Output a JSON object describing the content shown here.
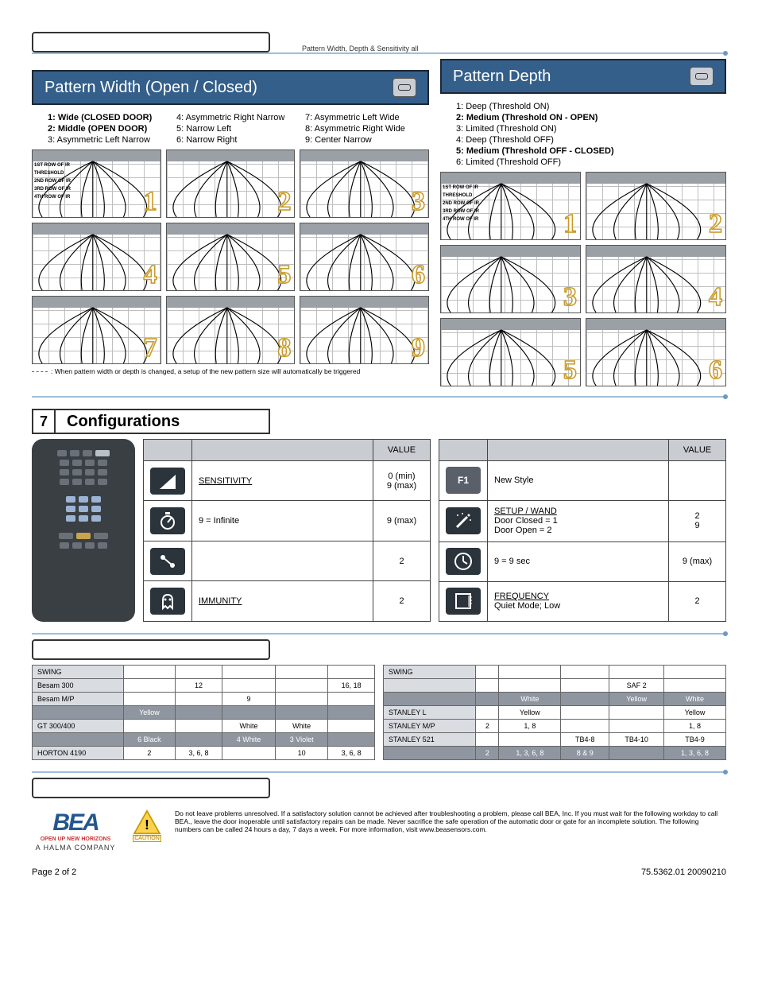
{
  "header_note": "Pattern Width, Depth & Sensitivity all",
  "pattern_width": {
    "title": "Pattern Width (Open / Closed)",
    "cols": [
      [
        "1:  Wide (CLOSED DOOR)",
        "2:  Middle (OPEN DOOR)",
        "3:  Asymmetric Left Narrow"
      ],
      [
        "4:  Asymmetric Right Narrow",
        "5:  Narrow Left",
        "6:  Narrow Right"
      ],
      [
        "7:  Asymmetric Left Wide",
        "8:  Asymmetric Right Wide",
        "9:  Center Narrow"
      ]
    ],
    "bold_idx": [
      0,
      1
    ],
    "row_labels": [
      "1ST ROW OF IR",
      "THRESHOLD",
      "2ND ROW OF IR",
      "3RD ROW OF IR",
      "4TH ROW OF IR"
    ],
    "footnote": ": When pattern width or depth is changed, a setup of the new pattern size will automatically be triggered"
  },
  "pattern_depth": {
    "title": "Pattern Depth",
    "items": [
      "1:  Deep (Threshold ON)",
      "2:  Medium (Threshold ON - OPEN)",
      "3:  Limited (Threshold ON)",
      "4:  Deep (Threshold OFF)",
      "5:  Medium (Threshold OFF - CLOSED)",
      "6:  Limited (Threshold OFF)"
    ],
    "bold_idx": [
      1,
      4
    ]
  },
  "config": {
    "num": "7",
    "title": "Configurations",
    "value_hdr": "VALUE",
    "left": [
      {
        "label": "SENSITIVITY",
        "under": true,
        "val": "0 (min)\n9 (max)",
        "icon": "tri"
      },
      {
        "label": "9 = Infinite",
        "under": false,
        "val": "9 (max)",
        "icon": "dial"
      },
      {
        "label": "",
        "under": false,
        "val": "2",
        "icon": "toggle"
      },
      {
        "label": "IMMUNITY",
        "under": true,
        "val": "2",
        "icon": "ghost"
      }
    ],
    "right": [
      {
        "label": "New Style",
        "under": false,
        "val": "",
        "icon": "F1",
        "text": "F1"
      },
      {
        "label": "SETUP / WAND\nDoor Closed = 1\nDoor Open = 2",
        "under": true,
        "val": "2\n9",
        "icon": "wand"
      },
      {
        "label": "9 = 9 sec",
        "under": false,
        "val": "9 (max)",
        "icon": "clock"
      },
      {
        "label": "FREQUENCY\n\nQuiet Mode; Low",
        "under": true,
        "val": "2",
        "icon": "door"
      }
    ]
  },
  "swing_left": {
    "hdr": "SWING",
    "rows": [
      [
        "Besam 300",
        "",
        "12",
        "",
        "",
        "16, 18"
      ],
      [
        "Besam M/P",
        "",
        "",
        "9",
        "",
        ""
      ],
      [
        "",
        "Yellow",
        "",
        "",
        "",
        ""
      ],
      [
        "GT 300/400",
        "",
        "",
        "White",
        "White",
        ""
      ],
      [
        "",
        "6 Black",
        "",
        "4 White",
        "3 Violet",
        ""
      ],
      [
        "HORTON 4190",
        "2",
        "3, 6, 8",
        "",
        "10",
        "3, 6, 8"
      ]
    ],
    "dark_rows": [
      2,
      4
    ]
  },
  "swing_right": {
    "hdr": "SWING",
    "rows": [
      [
        "",
        "",
        "",
        "",
        "SAF 2",
        ""
      ],
      [
        "",
        "",
        "White",
        "",
        "Yellow",
        "White"
      ],
      [
        "STANLEY L",
        "",
        "Yellow",
        "",
        "",
        "Yellow"
      ],
      [
        "STANLEY M/P",
        "2",
        "1, 8",
        "",
        "",
        "1, 8"
      ],
      [
        "STANLEY 521",
        "",
        "",
        "TB4-8",
        "TB4-10",
        "TB4-9"
      ],
      [
        "",
        "2",
        "1, 3, 6, 8",
        "8 & 9",
        "",
        "1, 3, 6, 8"
      ]
    ],
    "dark_rows": [
      1,
      5
    ]
  },
  "disclaimer": "Do not leave problems unresolved. If a satisfactory solution cannot be achieved after troubleshooting a problem, please call BEA, Inc.  If you must wait for the following workday to call BEA., leave the door inoperable until satisfactory repairs can be made.  Never sacrifice the safe operation of the automatic door or gate for an incomplete solution. The following numbers can be called 24 hours a day, 7 days a week.  For more information, visit www.beasensors.com.",
  "logo": {
    "name": "BEA",
    "tag": "OPEN UP NEW HORIZONS",
    "sub": "A HALMA COMPANY"
  },
  "caution": "CAUTION",
  "page_left": "Page 2 of 2",
  "page_right": "75.5362.01  20090210",
  "colors": {
    "accent": "#345f8a",
    "rule": "#a0bed9",
    "gold_stroke": "#c79a2a"
  }
}
